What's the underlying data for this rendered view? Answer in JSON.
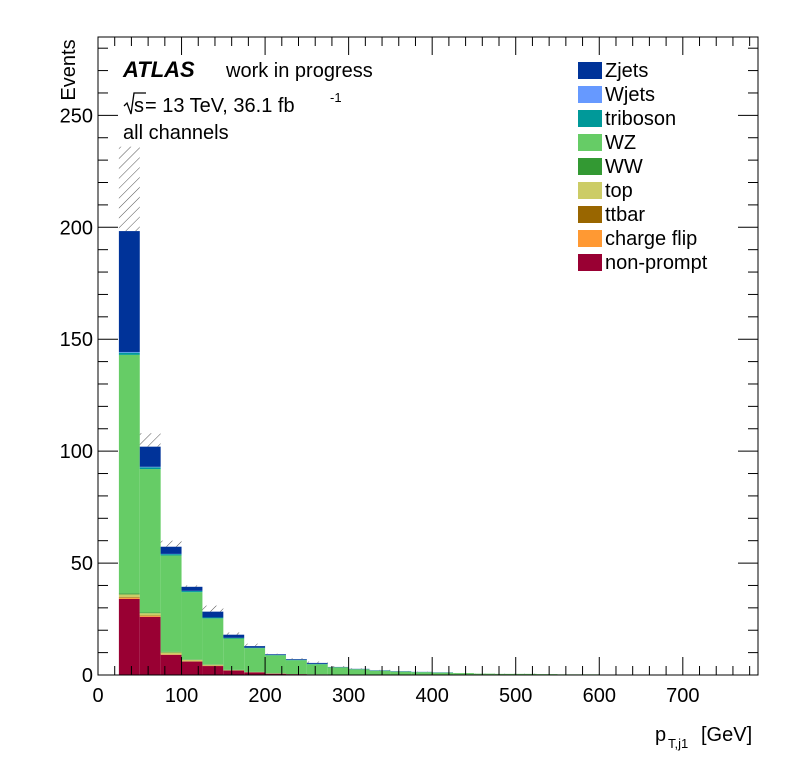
{
  "chart_data": {
    "type": "bar",
    "stacked": true,
    "title": "",
    "xlabel_main": "p",
    "xlabel_sub": "T,j1",
    "xlabel_unit": "[GeV]",
    "ylabel": "Events",
    "xlim": [
      0,
      790
    ],
    "ylim": [
      0,
      285
    ],
    "xticks": [
      0,
      100,
      200,
      300,
      400,
      500,
      600,
      700
    ],
    "yticks": [
      0,
      50,
      100,
      150,
      200,
      250
    ],
    "bin_edges": [
      25,
      50,
      75,
      100,
      125,
      150,
      175,
      200,
      225,
      250,
      275,
      300,
      325,
      350,
      375,
      400,
      425,
      450,
      475,
      500,
      525,
      550,
      575,
      600,
      625,
      650,
      675,
      700,
      725,
      750,
      775,
      790
    ],
    "series": [
      {
        "name": "non-prompt",
        "color": "#990033",
        "values": [
          34,
          26,
          9,
          6,
          4,
          2,
          1.2,
          0.6,
          0.4,
          0.3,
          0.2,
          0.15,
          0.1,
          0.1,
          0.05,
          0.05,
          0.05,
          0,
          0,
          0,
          0,
          0,
          0,
          0,
          0,
          0,
          0,
          0,
          0,
          0,
          0
        ]
      },
      {
        "name": "charge flip",
        "color": "#ff9933",
        "values": [
          0.5,
          0.4,
          0.2,
          0.1,
          0.1,
          0,
          0,
          0,
          0,
          0,
          0,
          0,
          0,
          0,
          0,
          0,
          0,
          0,
          0,
          0,
          0,
          0,
          0,
          0,
          0,
          0,
          0,
          0,
          0,
          0,
          0
        ]
      },
      {
        "name": "ttbar",
        "color": "#996600",
        "values": [
          0.3,
          0.2,
          0.1,
          0.1,
          0.1,
          0,
          0,
          0,
          0,
          0,
          0,
          0,
          0,
          0,
          0,
          0,
          0,
          0,
          0,
          0,
          0,
          0,
          0,
          0,
          0,
          0,
          0,
          0,
          0,
          0,
          0
        ]
      },
      {
        "name": "top",
        "color": "#cccc66",
        "values": [
          1.2,
          1.0,
          0.8,
          0.6,
          0.4,
          0.2,
          0.1,
          0.1,
          0,
          0,
          0,
          0,
          0,
          0,
          0,
          0,
          0,
          0,
          0,
          0,
          0,
          0,
          0,
          0,
          0,
          0,
          0,
          0,
          0,
          0,
          0
        ]
      },
      {
        "name": "WW",
        "color": "#339933",
        "values": [
          0.5,
          0.4,
          0.3,
          0.2,
          0.2,
          0.1,
          0.1,
          0.1,
          0,
          0,
          0,
          0,
          0,
          0,
          0,
          0,
          0,
          0,
          0,
          0,
          0,
          0,
          0,
          0,
          0,
          0,
          0,
          0,
          0,
          0,
          0
        ]
      },
      {
        "name": "WZ",
        "color": "#66cc66",
        "values": [
          106.5,
          64.0,
          43.0,
          30.0,
          20.5,
          14.0,
          10.6,
          8.0,
          6.2,
          4.5,
          3.2,
          2.4,
          1.8,
          1.4,
          1.2,
          1.0,
          0.8,
          0.6,
          0.5,
          0.5,
          0.4,
          0.3,
          0.3,
          0.2,
          0.2,
          0.2,
          0.2,
          0.15,
          0.15,
          0.1,
          0.1
        ]
      },
      {
        "name": "triboson",
        "color": "#009999",
        "values": [
          1.0,
          0.8,
          0.6,
          0.5,
          0.4,
          0.3,
          0.2,
          0.2,
          0.2,
          0.2,
          0.1,
          0.1,
          0.1,
          0.1,
          0.1,
          0.1,
          0,
          0,
          0,
          0,
          0,
          0,
          0,
          0,
          0,
          0,
          0,
          0,
          0,
          0,
          0
        ]
      },
      {
        "name": "Wjets",
        "color": "#6699ff",
        "values": [
          0.3,
          0.2,
          0.1,
          0.1,
          0,
          0,
          0,
          0,
          0,
          0,
          0,
          0,
          0,
          0,
          0,
          0,
          0,
          0,
          0,
          0,
          0,
          0,
          0,
          0,
          0,
          0,
          0,
          0,
          0,
          0,
          0
        ]
      },
      {
        "name": "Zjets",
        "color": "#003399",
        "values": [
          54.0,
          9.0,
          3.2,
          1.8,
          2.6,
          1.4,
          0.7,
          0.3,
          0.3,
          0.4,
          0.1,
          0.1,
          0.1,
          0.1,
          0.05,
          0.05,
          0,
          0,
          0,
          0,
          0,
          0,
          0,
          0,
          0,
          0,
          0,
          0,
          0,
          0,
          0
        ]
      }
    ],
    "uncertainty_totals": [
      236,
      108,
      60,
      40,
      31,
      19,
      14,
      9.5,
      7.5,
      6,
      4,
      3,
      2.3,
      1.8,
      1.5,
      1.2,
      0.9,
      0.7,
      0.6,
      0.6,
      0.4,
      0.3,
      0.3,
      0.2,
      0.2,
      0.2,
      0.2,
      0.15,
      0.15,
      0.1,
      0.1
    ],
    "legend_position": "top-right",
    "legend_order": [
      "Zjets",
      "Wjets",
      "triboson",
      "WZ",
      "WW",
      "top",
      "ttbar",
      "charge flip",
      "non-prompt"
    ]
  },
  "annotations": {
    "experiment": "ATLAS",
    "status": "work in progress",
    "sqrt_s": "s",
    "energy_lumi": " = 13 TeV, 36.1 fb",
    "lumi_exp": "-1",
    "channel": "all channels"
  }
}
